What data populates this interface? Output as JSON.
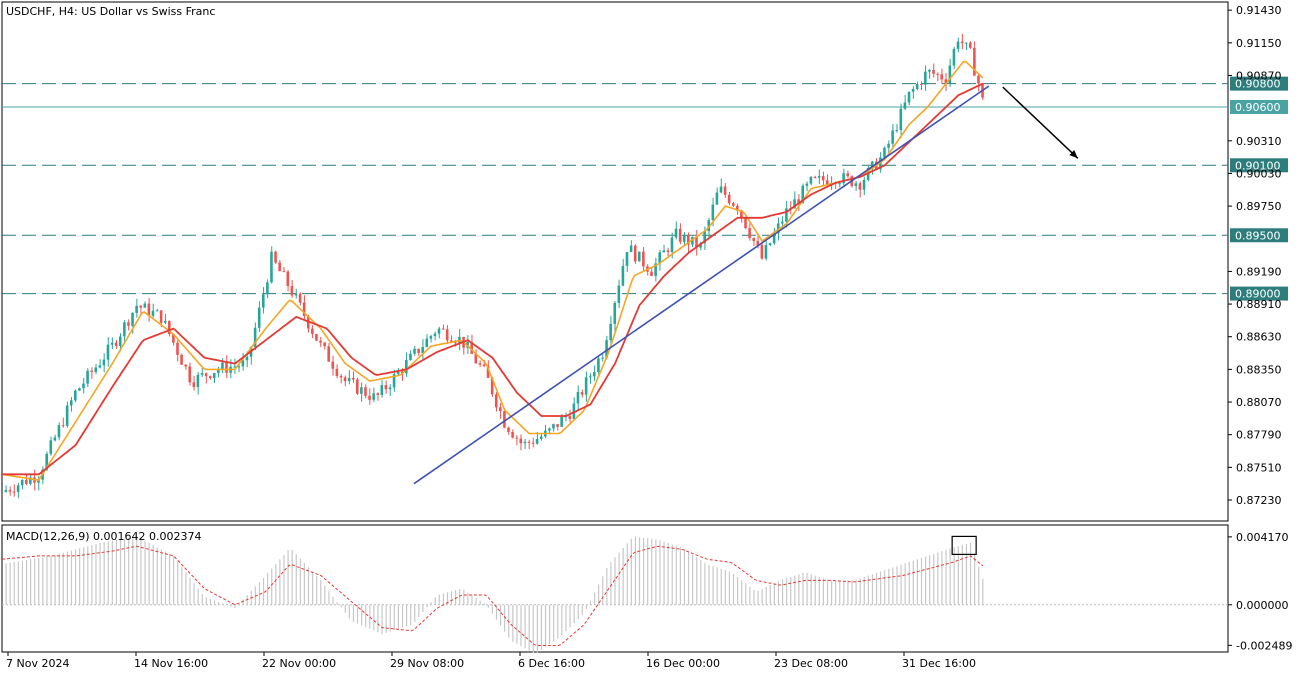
{
  "chart_title": "USDCHF, H4:  US Dollar vs Swiss Franc",
  "macd_label": "MACD(12,26,9) 0.001642 0.002374",
  "colors": {
    "bull": "#26a69a",
    "bear": "#ef5350",
    "ma_fast": "#f5a623",
    "ma_slow": "#e53935",
    "trendline": "#3f51b5",
    "level_line": "#2e7d7d",
    "current_line": "#4aa3a3",
    "macd_hist": "#c8c8c8",
    "macd_signal": "#e53935",
    "border": "#000000"
  },
  "price_axis": {
    "ticks": [
      "0.91430",
      "0.91150",
      "0.90870",
      "0.90310",
      "0.90030",
      "0.89750",
      "0.89190",
      "0.88910",
      "0.88630",
      "0.88350",
      "0.88070",
      "0.87790",
      "0.87510",
      "0.87230"
    ],
    "range": [
      0.8705,
      0.915
    ]
  },
  "macd_axis": {
    "ticks": [
      "0.004170",
      "0.000000",
      "-0.002489"
    ],
    "range": [
      -0.0029,
      0.0049
    ]
  },
  "time_axis": {
    "labels": [
      "7 Nov 2024",
      "14 Nov 16:00",
      "22 Nov 00:00",
      "29 Nov 08:00",
      "6 Dec 16:00",
      "16 Dec 00:00",
      "23 Dec 08:00",
      "31 Dec 16:00"
    ]
  },
  "levels": [
    {
      "value": 0.908,
      "label": "0.90800",
      "style": "dashed"
    },
    {
      "value": 0.906,
      "label": "0.90600",
      "style": "current"
    },
    {
      "value": 0.901,
      "label": "0.90100",
      "style": "dashed"
    },
    {
      "value": 0.895,
      "label": "0.89500",
      "style": "dashed"
    },
    {
      "value": 0.89,
      "label": "0.89000",
      "style": "dashed"
    }
  ],
  "chart_data": {
    "type": "candlestick",
    "symbol": "USDCHF",
    "timeframe": "H4",
    "trendline": {
      "start": {
        "index": 0.42,
        "price": 0.8737
      },
      "end": {
        "index": 1.0,
        "price": 0.9078
      }
    },
    "arrow_direction": "down-right",
    "series": [
      {
        "name": "price",
        "anchors": [
          [
            0,
            0.873
          ],
          [
            0.03,
            0.8745
          ],
          [
            0.06,
            0.8815
          ],
          [
            0.09,
            0.8855
          ],
          [
            0.11,
            0.889
          ],
          [
            0.13,
            0.888
          ],
          [
            0.155,
            0.8825
          ],
          [
            0.175,
            0.8835
          ],
          [
            0.2,
            0.884
          ],
          [
            0.22,
            0.893
          ],
          [
            0.235,
            0.8905
          ],
          [
            0.26,
            0.8855
          ],
          [
            0.28,
            0.8825
          ],
          [
            0.305,
            0.881
          ],
          [
            0.33,
            0.884
          ],
          [
            0.355,
            0.887
          ],
          [
            0.375,
            0.886
          ],
          [
            0.395,
            0.883
          ],
          [
            0.41,
            0.879
          ],
          [
            0.425,
            0.877
          ],
          [
            0.445,
            0.878
          ],
          [
            0.465,
            0.88
          ],
          [
            0.49,
            0.885
          ],
          [
            0.51,
            0.894
          ],
          [
            0.53,
            0.892
          ],
          [
            0.55,
            0.895
          ],
          [
            0.57,
            0.894
          ],
          [
            0.585,
            0.899
          ],
          [
            0.6,
            0.8975
          ],
          [
            0.62,
            0.893
          ],
          [
            0.64,
            0.897
          ],
          [
            0.66,
            0.8995
          ],
          [
            0.68,
            0.9
          ],
          [
            0.7,
            0.8995
          ],
          [
            0.72,
            0.902
          ],
          [
            0.74,
            0.907
          ],
          [
            0.755,
            0.909
          ],
          [
            0.77,
            0.9085
          ],
          [
            0.78,
            0.912
          ],
          [
            0.79,
            0.9105
          ],
          [
            0.8,
            0.9068
          ]
        ]
      },
      {
        "name": "ma_fast",
        "anchors": [
          [
            0,
            0.8745
          ],
          [
            0.03,
            0.874
          ],
          [
            0.06,
            0.879
          ],
          [
            0.09,
            0.884
          ],
          [
            0.115,
            0.8885
          ],
          [
            0.14,
            0.8865
          ],
          [
            0.165,
            0.8835
          ],
          [
            0.19,
            0.8835
          ],
          [
            0.215,
            0.887
          ],
          [
            0.235,
            0.8895
          ],
          [
            0.26,
            0.887
          ],
          [
            0.28,
            0.884
          ],
          [
            0.3,
            0.8825
          ],
          [
            0.325,
            0.883
          ],
          [
            0.35,
            0.8855
          ],
          [
            0.375,
            0.886
          ],
          [
            0.395,
            0.884
          ],
          [
            0.41,
            0.88
          ],
          [
            0.43,
            0.878
          ],
          [
            0.455,
            0.878
          ],
          [
            0.475,
            0.88
          ],
          [
            0.495,
            0.885
          ],
          [
            0.515,
            0.8915
          ],
          [
            0.535,
            0.8925
          ],
          [
            0.555,
            0.894
          ],
          [
            0.575,
            0.8955
          ],
          [
            0.59,
            0.8975
          ],
          [
            0.605,
            0.897
          ],
          [
            0.62,
            0.8945
          ],
          [
            0.64,
            0.896
          ],
          [
            0.66,
            0.899
          ],
          [
            0.68,
            0.8995
          ],
          [
            0.7,
            0.9
          ],
          [
            0.72,
            0.9015
          ],
          [
            0.74,
            0.9045
          ],
          [
            0.755,
            0.906
          ],
          [
            0.77,
            0.908
          ],
          [
            0.785,
            0.91
          ],
          [
            0.8,
            0.9085
          ]
        ]
      },
      {
        "name": "ma_slow",
        "anchors": [
          [
            0,
            0.8745
          ],
          [
            0.03,
            0.8745
          ],
          [
            0.06,
            0.877
          ],
          [
            0.09,
            0.882
          ],
          [
            0.115,
            0.886
          ],
          [
            0.14,
            0.887
          ],
          [
            0.165,
            0.8845
          ],
          [
            0.19,
            0.884
          ],
          [
            0.215,
            0.886
          ],
          [
            0.24,
            0.888
          ],
          [
            0.265,
            0.887
          ],
          [
            0.285,
            0.8845
          ],
          [
            0.305,
            0.883
          ],
          [
            0.33,
            0.8835
          ],
          [
            0.355,
            0.885
          ],
          [
            0.38,
            0.886
          ],
          [
            0.4,
            0.8845
          ],
          [
            0.42,
            0.8815
          ],
          [
            0.44,
            0.8795
          ],
          [
            0.46,
            0.8795
          ],
          [
            0.48,
            0.8805
          ],
          [
            0.5,
            0.884
          ],
          [
            0.52,
            0.889
          ],
          [
            0.54,
            0.8915
          ],
          [
            0.56,
            0.8935
          ],
          [
            0.58,
            0.895
          ],
          [
            0.6,
            0.8965
          ],
          [
            0.62,
            0.8965
          ],
          [
            0.64,
            0.897
          ],
          [
            0.66,
            0.8985
          ],
          [
            0.68,
            0.8995
          ],
          [
            0.7,
            0.9
          ],
          [
            0.72,
            0.901
          ],
          [
            0.74,
            0.903
          ],
          [
            0.76,
            0.905
          ],
          [
            0.78,
            0.907
          ],
          [
            0.8,
            0.908
          ]
        ]
      },
      {
        "name": "macd_hist",
        "anchors": [
          [
            0,
            0.0025
          ],
          [
            0.04,
            0.003
          ],
          [
            0.08,
            0.0038
          ],
          [
            0.11,
            0.0042
          ],
          [
            0.14,
            0.003
          ],
          [
            0.165,
            0.0005
          ],
          [
            0.19,
            -0.0002
          ],
          [
            0.215,
            0.0018
          ],
          [
            0.235,
            0.0035
          ],
          [
            0.26,
            0.0015
          ],
          [
            0.285,
            -0.001
          ],
          [
            0.31,
            -0.0018
          ],
          [
            0.335,
            -0.0012
          ],
          [
            0.355,
            0.0006
          ],
          [
            0.375,
            0.001
          ],
          [
            0.395,
            0.0
          ],
          [
            0.415,
            -0.0022
          ],
          [
            0.435,
            -0.003
          ],
          [
            0.455,
            -0.002
          ],
          [
            0.475,
            -0.0005
          ],
          [
            0.495,
            0.0025
          ],
          [
            0.515,
            0.0042
          ],
          [
            0.535,
            0.004
          ],
          [
            0.555,
            0.0035
          ],
          [
            0.575,
            0.0025
          ],
          [
            0.595,
            0.002
          ],
          [
            0.615,
            0.0008
          ],
          [
            0.635,
            0.0015
          ],
          [
            0.655,
            0.002
          ],
          [
            0.675,
            0.0015
          ],
          [
            0.695,
            0.0015
          ],
          [
            0.715,
            0.002
          ],
          [
            0.735,
            0.0025
          ],
          [
            0.755,
            0.003
          ],
          [
            0.775,
            0.0035
          ],
          [
            0.79,
            0.0038
          ],
          [
            0.8,
            0.0016
          ]
        ]
      },
      {
        "name": "macd_signal",
        "anchors": [
          [
            0,
            0.0028
          ],
          [
            0.03,
            0.003
          ],
          [
            0.06,
            0.003
          ],
          [
            0.09,
            0.0033
          ],
          [
            0.11,
            0.0036
          ],
          [
            0.14,
            0.003
          ],
          [
            0.165,
            0.001
          ],
          [
            0.19,
            0.0
          ],
          [
            0.215,
            0.0008
          ],
          [
            0.235,
            0.0025
          ],
          [
            0.26,
            0.0018
          ],
          [
            0.285,
            0.0002
          ],
          [
            0.31,
            -0.0014
          ],
          [
            0.335,
            -0.0016
          ],
          [
            0.355,
            -0.0002
          ],
          [
            0.375,
            0.0006
          ],
          [
            0.395,
            0.0006
          ],
          [
            0.415,
            -0.0012
          ],
          [
            0.435,
            -0.0025
          ],
          [
            0.455,
            -0.0025
          ],
          [
            0.475,
            -0.0012
          ],
          [
            0.495,
            0.001
          ],
          [
            0.515,
            0.0032
          ],
          [
            0.535,
            0.0036
          ],
          [
            0.555,
            0.0034
          ],
          [
            0.575,
            0.0028
          ],
          [
            0.595,
            0.0026
          ],
          [
            0.615,
            0.0015
          ],
          [
            0.635,
            0.0012
          ],
          [
            0.655,
            0.0015
          ],
          [
            0.675,
            0.0015
          ],
          [
            0.695,
            0.0014
          ],
          [
            0.715,
            0.0016
          ],
          [
            0.735,
            0.0018
          ],
          [
            0.755,
            0.0022
          ],
          [
            0.775,
            0.0026
          ],
          [
            0.79,
            0.003
          ],
          [
            0.8,
            0.0024
          ]
        ]
      }
    ]
  }
}
